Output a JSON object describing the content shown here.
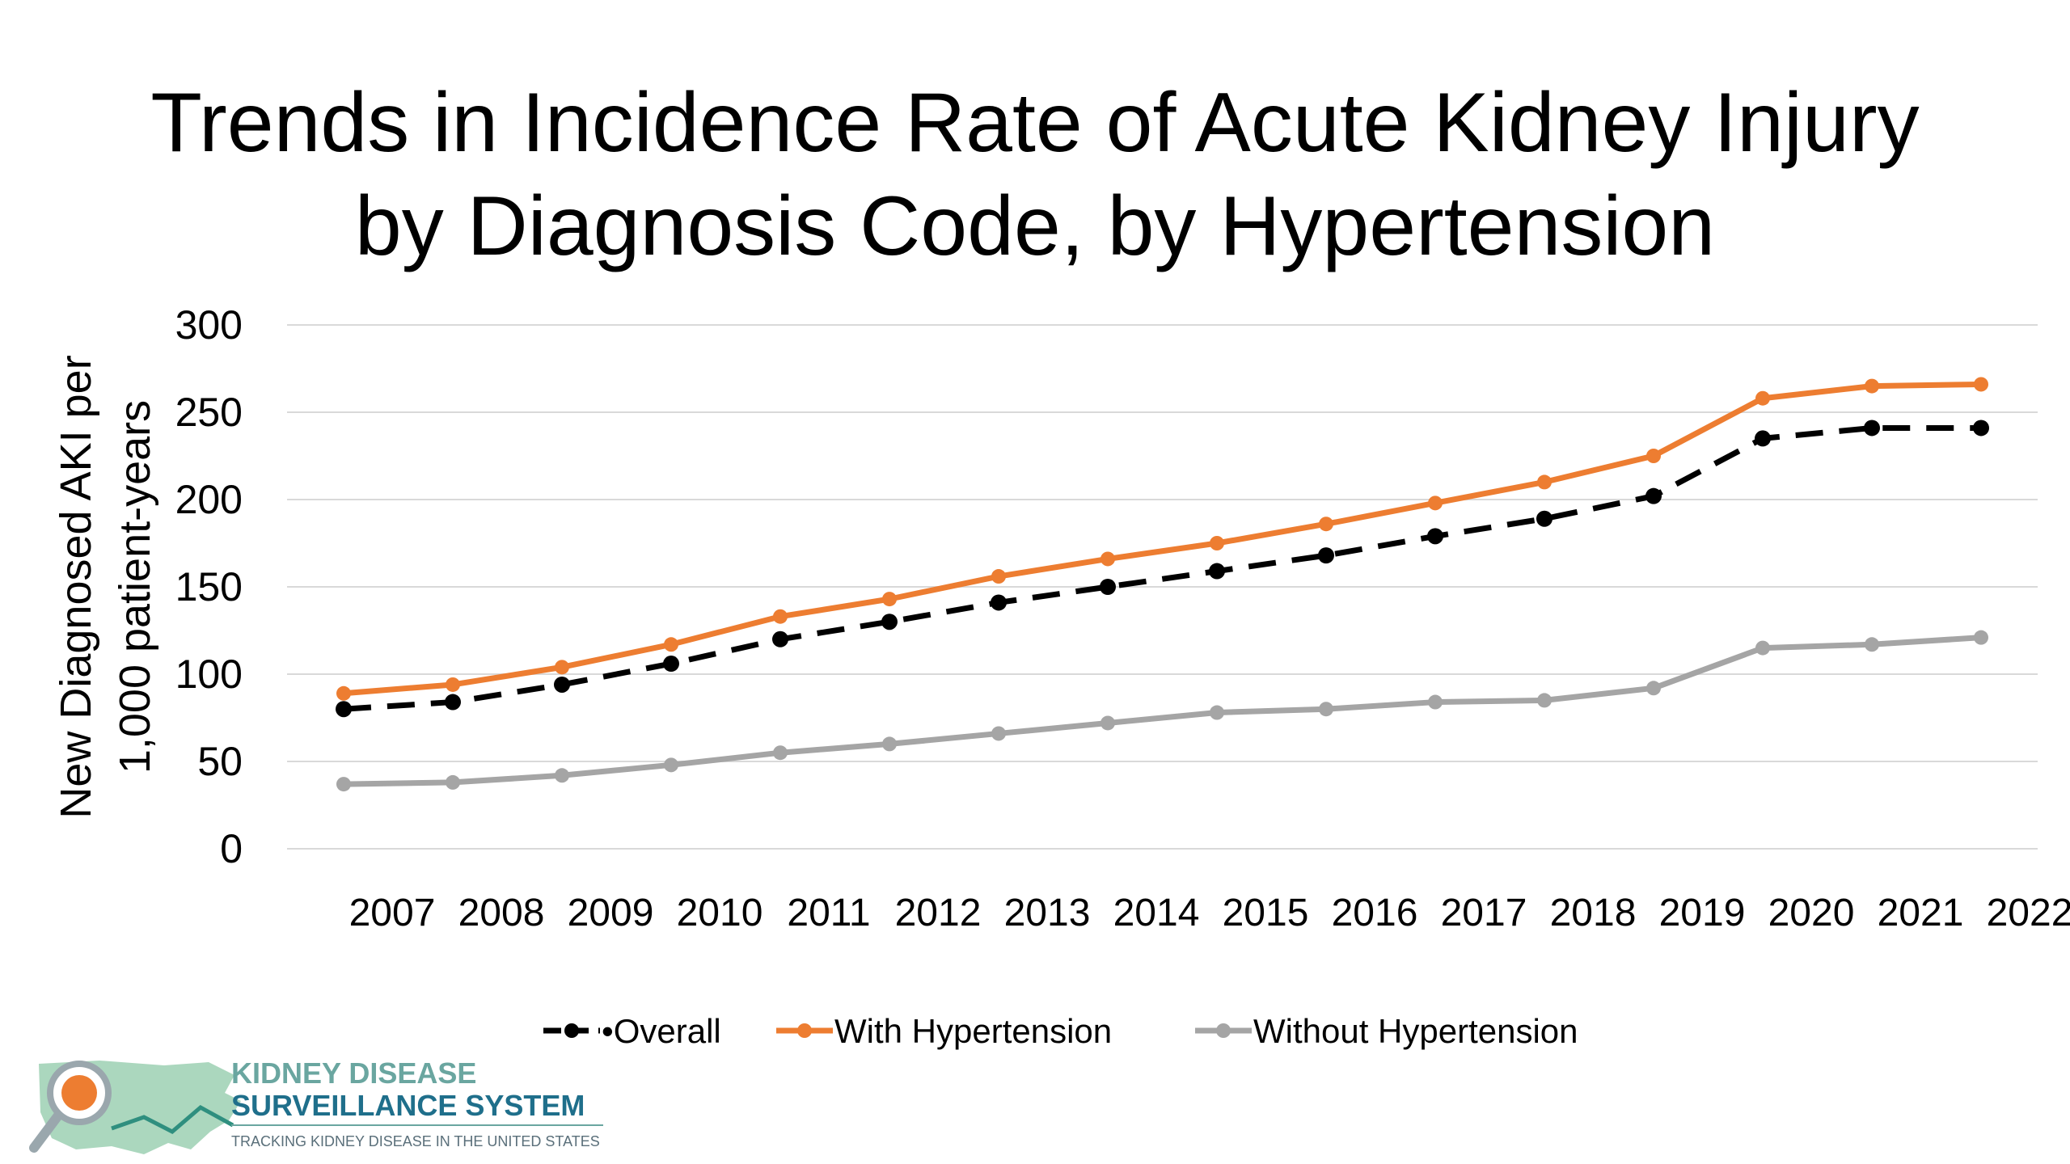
{
  "chart_data": {
    "type": "line",
    "title_lines": [
      "Trends in Incidence Rate of Acute Kidney Injury",
      "by Diagnosis Code, by Hypertension"
    ],
    "ylabel_lines": [
      "New Diagnosed AKI per",
      "1,000 patient-years"
    ],
    "xlabel": "",
    "categories": [
      "2007",
      "2008",
      "2009",
      "2010",
      "2011",
      "2012",
      "2013",
      "2014",
      "2015",
      "2016",
      "2017",
      "2018",
      "2019",
      "2020",
      "2021",
      "2022"
    ],
    "ylim": [
      0,
      300
    ],
    "yticks": [
      0,
      50,
      100,
      150,
      200,
      250,
      300
    ],
    "grid": true,
    "legend_position": "bottom",
    "series": [
      {
        "name": "•Overall",
        "color": "#000000",
        "dashed": true,
        "values": [
          80,
          84,
          94,
          106,
          120,
          130,
          141,
          150,
          159,
          168,
          179,
          189,
          202,
          235,
          241,
          241
        ]
      },
      {
        "name": "With Hypertension",
        "color": "#ed7d31",
        "dashed": false,
        "values": [
          89,
          94,
          104,
          117,
          133,
          143,
          156,
          166,
          175,
          186,
          198,
          210,
          225,
          258,
          265,
          266
        ]
      },
      {
        "name": "Without Hypertension",
        "color": "#a5a5a5",
        "dashed": false,
        "values": [
          37,
          38,
          42,
          48,
          55,
          60,
          66,
          72,
          78,
          80,
          84,
          85,
          92,
          115,
          117,
          121
        ]
      }
    ]
  },
  "logo": {
    "line1": "KIDNEY DISEASE",
    "line2": "SURVEILLANCE SYSTEM",
    "line3": "TRACKING KIDNEY DISEASE IN THE UNITED STATES",
    "color_teal": "#6aa6a0",
    "color_blue": "#1f6f8b",
    "color_orange": "#ed7d31"
  }
}
